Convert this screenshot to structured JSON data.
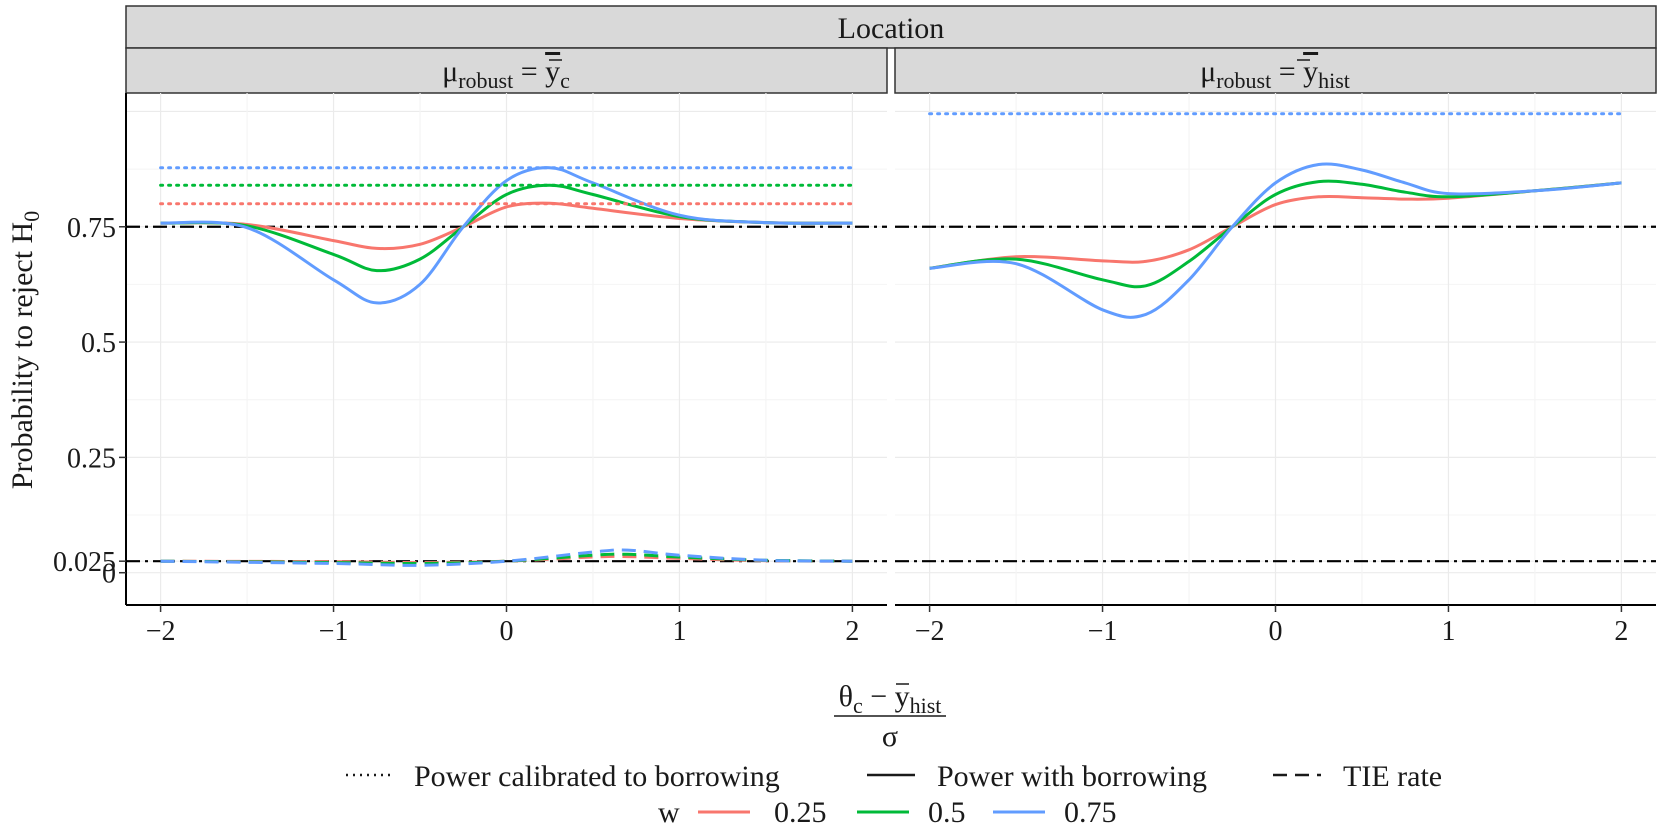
{
  "chart_data": {
    "type": "line",
    "outer_strip": "Location",
    "panels": [
      {
        "strip_base": "μ",
        "strip_sub": "robust",
        "strip_eq": " = ",
        "strip_rhs_base": "y",
        "strip_rhs_sub": "c",
        "reference_lines": [
          0.75,
          0.025
        ],
        "series": [
          {
            "w": "0.25",
            "kind": "Power with borrowing",
            "x": [
              -2,
              -1.5,
              -1,
              -0.75,
              -0.5,
              -0.25,
              0,
              0.25,
              0.5,
              1,
              1.5,
              2
            ],
            "y": [
              0.758,
              0.755,
              0.72,
              0.703,
              0.712,
              0.75,
              0.793,
              0.801,
              0.79,
              0.768,
              0.759,
              0.758
            ]
          },
          {
            "w": "0.5",
            "kind": "Power with borrowing",
            "x": [
              -2,
              -1.5,
              -1,
              -0.75,
              -0.5,
              -0.25,
              0,
              0.25,
              0.5,
              1,
              1.5,
              2
            ],
            "y": [
              0.758,
              0.752,
              0.69,
              0.655,
              0.68,
              0.75,
              0.82,
              0.84,
              0.82,
              0.772,
              0.759,
              0.758
            ]
          },
          {
            "w": "0.75",
            "kind": "Power with borrowing",
            "x": [
              -2,
              -1.5,
              -1,
              -0.75,
              -0.5,
              -0.25,
              0,
              0.25,
              0.5,
              1,
              1.5,
              2
            ],
            "y": [
              0.758,
              0.748,
              0.635,
              0.585,
              0.625,
              0.75,
              0.85,
              0.878,
              0.845,
              0.775,
              0.759,
              0.758
            ]
          },
          {
            "w": "0.25",
            "kind": "Power calibrated to borrowing",
            "x": [
              -2,
              2
            ],
            "y": [
              0.8,
              0.8
            ]
          },
          {
            "w": "0.5",
            "kind": "Power calibrated to borrowing",
            "x": [
              -2,
              2
            ],
            "y": [
              0.84,
              0.84
            ]
          },
          {
            "w": "0.75",
            "kind": "Power calibrated to borrowing",
            "x": [
              -2,
              2
            ],
            "y": [
              0.878,
              0.878
            ]
          },
          {
            "w": "0.25",
            "kind": "TIE rate",
            "x": [
              -2,
              -1,
              -0.5,
              0,
              0.5,
              0.7,
              1,
              1.5,
              2
            ],
            "y": [
              0.025,
              0.024,
              0.022,
              0.025,
              0.034,
              0.035,
              0.031,
              0.026,
              0.025
            ]
          },
          {
            "w": "0.5",
            "kind": "TIE rate",
            "x": [
              -2,
              -1,
              -0.5,
              0,
              0.5,
              0.7,
              1,
              1.5,
              2
            ],
            "y": [
              0.025,
              0.022,
              0.02,
              0.025,
              0.038,
              0.04,
              0.034,
              0.027,
              0.025
            ]
          },
          {
            "w": "0.75",
            "kind": "TIE rate",
            "x": [
              -2,
              -1,
              -0.5,
              0,
              0.5,
              0.7,
              1,
              1.5,
              2
            ],
            "y": [
              0.025,
              0.02,
              0.016,
              0.025,
              0.045,
              0.049,
              0.038,
              0.027,
              0.025
            ]
          }
        ]
      },
      {
        "strip_base": "μ",
        "strip_sub": "robust",
        "strip_eq": " = ",
        "strip_rhs_base": "y",
        "strip_rhs_sub": "hist",
        "reference_lines": [
          0.75,
          0.025
        ],
        "series": [
          {
            "w": "0.25",
            "kind": "Power with borrowing",
            "x": [
              -2,
              -1.5,
              -1,
              -0.75,
              -0.5,
              -0.25,
              0,
              0.25,
              0.5,
              0.75,
              1,
              1.5,
              2
            ],
            "y": [
              0.66,
              0.685,
              0.676,
              0.675,
              0.7,
              0.75,
              0.798,
              0.815,
              0.813,
              0.81,
              0.812,
              0.828,
              0.845
            ]
          },
          {
            "w": "0.5",
            "kind": "Power with borrowing",
            "x": [
              -2,
              -1.5,
              -1,
              -0.75,
              -0.5,
              -0.25,
              0,
              0.25,
              0.5,
              0.75,
              1,
              1.5,
              2
            ],
            "y": [
              0.66,
              0.68,
              0.635,
              0.622,
              0.675,
              0.75,
              0.82,
              0.848,
              0.842,
              0.825,
              0.815,
              0.828,
              0.845
            ]
          },
          {
            "w": "0.75",
            "kind": "Power with borrowing",
            "x": [
              -2,
              -1.5,
              -1,
              -0.75,
              -0.5,
              -0.25,
              0,
              0.25,
              0.5,
              0.75,
              1,
              1.5,
              2
            ],
            "y": [
              0.66,
              0.67,
              0.57,
              0.56,
              0.635,
              0.75,
              0.845,
              0.885,
              0.873,
              0.845,
              0.822,
              0.828,
              0.845
            ]
          },
          {
            "w": "0.75",
            "kind": "Power calibrated to borrowing",
            "x": [
              -2,
              2
            ],
            "y": [
              0.995,
              0.995
            ]
          }
        ]
      }
    ],
    "x_ticks": [
      "−2",
      "−1",
      "0",
      "1",
      "2"
    ],
    "y_ticks": [
      "0",
      "0.025",
      "0.25",
      "0.5",
      "0.75"
    ],
    "y_tick_values": [
      0,
      0.025,
      0.25,
      0.5,
      0.75
    ],
    "xlim": [
      -2.2,
      2.2
    ],
    "ylim": [
      -0.07,
      1.04
    ],
    "ylabel": "Probability to reject H",
    "ylabel_sub": "0",
    "xlabel_num_left": "θ",
    "xlabel_num_left_sub": "c",
    "xlabel_minus": " − ",
    "xlabel_num_right": "y",
    "xlabel_num_right_sub": "hist",
    "xlabel_den": "σ",
    "legend": {
      "linetype_items": [
        {
          "label": "Power calibrated to borrowing",
          "dash": "dotted"
        },
        {
          "label": "Power with borrowing",
          "dash": "solid"
        },
        {
          "label": "TIE rate",
          "dash": "dashed"
        }
      ],
      "color_title": "w",
      "color_items": [
        {
          "label": "0.25",
          "color": "#F8766D"
        },
        {
          "label": "0.5",
          "color": "#00BA38"
        },
        {
          "label": "0.75",
          "color": "#619CFF"
        }
      ],
      "placement": "bottom"
    }
  }
}
